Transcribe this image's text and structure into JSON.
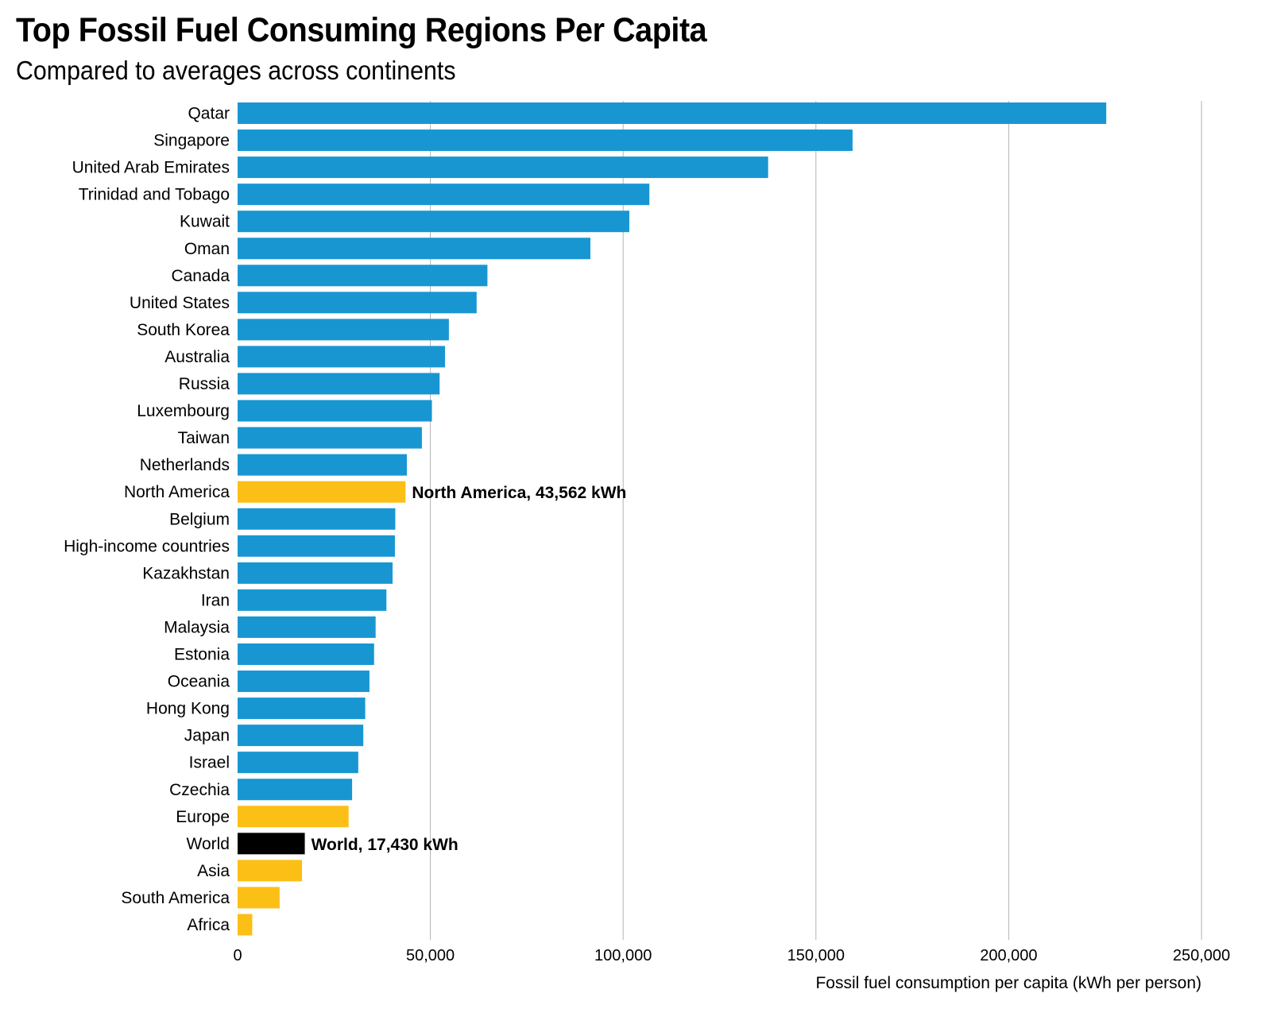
{
  "title": "Top Fossil Fuel Consuming Regions Per Capita",
  "subtitle": "Compared to averages across continents",
  "colors": {
    "country": "#1896d2",
    "continent": "#fbbf16",
    "world": "#000000",
    "grid": "#b3b3b3"
  },
  "chart_data": {
    "type": "bar",
    "orientation": "horizontal",
    "title": "Top Fossil Fuel Consuming Regions Per Capita",
    "subtitle": "Compared to averages across continents",
    "xlabel": "Fossil fuel consumption per capita (kWh per person)",
    "ylabel": "",
    "xlim": [
      0,
      250000
    ],
    "xticks": [
      0,
      50000,
      100000,
      150000,
      200000,
      250000
    ],
    "xtick_labels": [
      "0",
      "50,000",
      "100,000",
      "150,000",
      "200,000",
      "250,000"
    ],
    "grid": "vertical",
    "categories": [
      "Qatar",
      "Singapore",
      "United Arab Emirates",
      "Trinidad and Tobago",
      "Kuwait",
      "Oman",
      "Canada",
      "United States",
      "South Korea",
      "Australia",
      "Russia",
      "Luxembourg",
      "Taiwan",
      "Netherlands",
      "North America",
      "Belgium",
      "High-income countries",
      "Kazakhstan",
      "Iran",
      "Malaysia",
      "Estonia",
      "Oceania",
      "Hong Kong",
      "Japan",
      "Israel",
      "Czechia",
      "Europe",
      "World",
      "Asia",
      "South America",
      "Africa"
    ],
    "values": [
      225300,
      159500,
      137600,
      106800,
      101600,
      91500,
      64800,
      62000,
      54800,
      53800,
      52400,
      50400,
      47800,
      43900,
      43562,
      40900,
      40800,
      40200,
      38600,
      35800,
      35400,
      34200,
      33100,
      32600,
      31300,
      29700,
      28800,
      17430,
      16700,
      10900,
      3800
    ],
    "groups": [
      "country",
      "country",
      "country",
      "country",
      "country",
      "country",
      "country",
      "country",
      "country",
      "country",
      "country",
      "country",
      "country",
      "country",
      "continent",
      "country",
      "country",
      "country",
      "country",
      "country",
      "country",
      "country",
      "country",
      "country",
      "country",
      "country",
      "continent",
      "world",
      "continent",
      "continent",
      "continent"
    ],
    "annotations": [
      {
        "category": "North America",
        "text": "North America, 43,562 kWh"
      },
      {
        "category": "World",
        "text": "World, 17,430 kWh"
      }
    ]
  }
}
